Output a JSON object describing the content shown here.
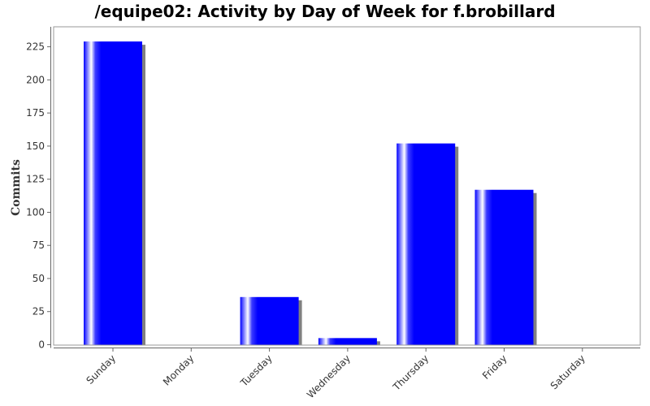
{
  "title": "/equipe02: Activity by Day of Week for f.brobillard",
  "chart_data": {
    "type": "bar",
    "title": "/equipe02: Activity by Day of Week for f.brobillard",
    "xlabel": "",
    "ylabel": "Commits",
    "categories": [
      "Sunday",
      "Monday",
      "Tuesday",
      "Wednesday",
      "Thursday",
      "Friday",
      "Saturday"
    ],
    "values": [
      229,
      0,
      36,
      5,
      152,
      117,
      0
    ],
    "ylim": [
      0,
      240
    ],
    "yticks": [
      0,
      25,
      50,
      75,
      100,
      125,
      150,
      175,
      200,
      225
    ],
    "grid": false,
    "legend": "none",
    "bar_color": "#0000ff",
    "shadow_color": "#808080"
  }
}
